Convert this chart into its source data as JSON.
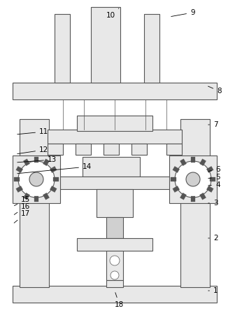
{
  "bg_color": "#ffffff",
  "line_color": "#555555",
  "fill_light": "#e8e8e8",
  "fill_mid": "#d0d0d0",
  "fill_dark": "#b8b8b8",
  "fill_white": "#ffffff",
  "lw": 0.8,
  "tlw": 0.5
}
